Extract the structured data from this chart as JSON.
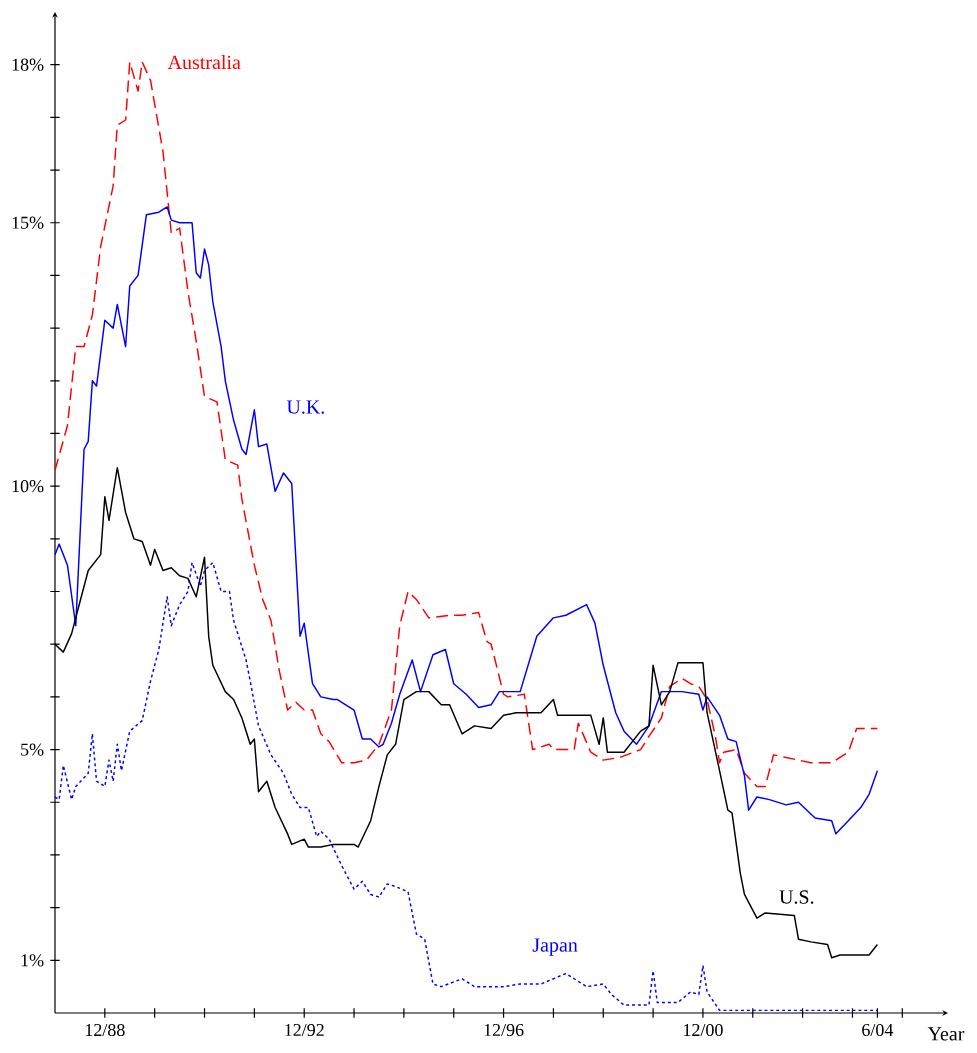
{
  "chart_data": {
    "type": "line",
    "xlabel": "Year",
    "xlim": [
      "1987-12",
      "2005-11"
    ],
    "ylim": [
      0,
      19
    ],
    "xticks": [
      {
        "value": "1988-12",
        "label": "12/88"
      },
      {
        "value": "1989-12",
        "label": null
      },
      {
        "value": "1990-12",
        "label": null
      },
      {
        "value": "1991-12",
        "label": null
      },
      {
        "value": "1992-12",
        "label": "12/92"
      },
      {
        "value": "1993-12",
        "label": null
      },
      {
        "value": "1994-12",
        "label": null
      },
      {
        "value": "1995-12",
        "label": null
      },
      {
        "value": "1996-12",
        "label": "12/96"
      },
      {
        "value": "1997-12",
        "label": null
      },
      {
        "value": "1998-12",
        "label": null
      },
      {
        "value": "1999-12",
        "label": null
      },
      {
        "value": "2000-12",
        "label": "12/00"
      },
      {
        "value": "2001-12",
        "label": null
      },
      {
        "value": "2002-12",
        "label": null
      },
      {
        "value": "2003-12",
        "label": null
      },
      {
        "value": "2004-06",
        "label": "6/04"
      },
      {
        "value": "2004-12",
        "label": null
      }
    ],
    "yticks": [
      {
        "value": 1,
        "label": "1%"
      },
      {
        "value": 2,
        "label": null
      },
      {
        "value": 3,
        "label": null
      },
      {
        "value": 4,
        "label": null
      },
      {
        "value": 5,
        "label": "5%"
      },
      {
        "value": 6,
        "label": null
      },
      {
        "value": 7,
        "label": null
      },
      {
        "value": 8,
        "label": null
      },
      {
        "value": 9,
        "label": null
      },
      {
        "value": 10,
        "label": "10%"
      },
      {
        "value": 11,
        "label": null
      },
      {
        "value": 12,
        "label": null
      },
      {
        "value": 13,
        "label": null
      },
      {
        "value": 14,
        "label": null
      },
      {
        "value": 15,
        "label": "15%"
      },
      {
        "value": 16,
        "label": null
      },
      {
        "value": 17,
        "label": null
      },
      {
        "value": 18,
        "label": "18%"
      }
    ],
    "series": [
      {
        "name": "Australia",
        "color": "#ff0000",
        "line_style": "dashed",
        "x": [
          "1987-12",
          "1988-03",
          "1988-05",
          "1988-07",
          "1988-09",
          "1988-11",
          "1989-02",
          "1989-03",
          "1989-05",
          "1989-06",
          "1989-08",
          "1989-09",
          "1989-11",
          "1990-02",
          "1990-04",
          "1990-06",
          "1990-08",
          "1990-10",
          "1990-12",
          "1991-03",
          "1991-05",
          "1991-08",
          "1991-09",
          "1991-12",
          "1992-02",
          "1992-04",
          "1992-06",
          "1992-08",
          "1992-10",
          "1992-12",
          "1993-02",
          "1993-04",
          "1993-06",
          "1993-09",
          "1993-12",
          "1994-03",
          "1994-06",
          "1994-09",
          "1994-11",
          "1995-01",
          "1995-03",
          "1995-06",
          "1995-11",
          "1996-02",
          "1996-06",
          "1996-08",
          "1996-09",
          "1996-12",
          "1997-01",
          "1997-05",
          "1997-07",
          "1997-11",
          "1997-12",
          "1998-05",
          "1998-06",
          "1998-09",
          "1998-12",
          "1999-04",
          "1999-09",
          "1999-11",
          "2000-02",
          "2000-04",
          "2000-07",
          "2000-09",
          "2000-11",
          "2001-01",
          "2001-03",
          "2001-04",
          "2001-05",
          "2001-08",
          "2001-10",
          "2002-01",
          "2002-03",
          "2002-05",
          "2002-08",
          "2002-11",
          "2003-02",
          "2003-07",
          "2003-09",
          "2003-11",
          "2004-01",
          "2004-03",
          "2004-06"
        ],
        "values": [
          10.3,
          11.15,
          12.65,
          12.65,
          13.25,
          14.55,
          15.7,
          16.85,
          16.95,
          18.05,
          17.5,
          18.05,
          17.7,
          16.35,
          14.8,
          14.9,
          13.7,
          12.75,
          11.7,
          11.6,
          10.5,
          10.4,
          9.75,
          8.5,
          7.85,
          7.45,
          6.5,
          5.75,
          5.9,
          5.75,
          5.75,
          5.3,
          5.15,
          4.75,
          4.75,
          4.8,
          5.1,
          5.75,
          7.35,
          8.0,
          7.85,
          7.5,
          7.55,
          7.55,
          7.6,
          7.05,
          7.0,
          6.05,
          6.0,
          6.05,
          5.0,
          5.1,
          5.0,
          5.0,
          5.5,
          4.95,
          4.8,
          4.85,
          5.0,
          5.25,
          5.6,
          6.2,
          6.35,
          6.25,
          6.2,
          5.95,
          5.25,
          4.75,
          4.95,
          5.0,
          4.55,
          4.3,
          4.3,
          4.9,
          4.85,
          4.8,
          4.75,
          4.75,
          4.85,
          4.95,
          5.4,
          5.4,
          5.4
        ]
      },
      {
        "name": "U.K.",
        "color": "#0000ff",
        "line_style": "solid",
        "x": [
          "1987-12",
          "1988-01",
          "1988-03",
          "1988-05",
          "1988-07",
          "1988-08",
          "1988-09",
          "1988-10",
          "1988-12",
          "1989-02",
          "1989-03",
          "1989-05",
          "1989-06",
          "1989-08",
          "1989-10",
          "1990-01",
          "1990-03",
          "1990-04",
          "1990-06",
          "1990-09",
          "1990-10",
          "1990-11",
          "1990-12",
          "1991-01",
          "1991-02",
          "1991-04",
          "1991-05",
          "1991-07",
          "1991-09",
          "1991-10",
          "1991-12",
          "1992-01",
          "1992-03",
          "1992-05",
          "1992-07",
          "1992-09",
          "1992-11",
          "1992-12",
          "1993-02",
          "1993-04",
          "1993-07",
          "1993-08",
          "1993-12",
          "1994-02",
          "1994-04",
          "1994-06",
          "1994-07",
          "1994-09",
          "1994-11",
          "1995-02",
          "1995-04",
          "1995-07",
          "1995-10",
          "1995-12",
          "1996-03",
          "1996-06",
          "1996-09",
          "1996-11",
          "1997-04",
          "1997-08",
          "1997-12",
          "1998-03",
          "1998-08",
          "1998-10",
          "1998-12",
          "1999-03",
          "1999-05",
          "1999-08",
          "1999-11",
          "2000-02",
          "2000-07",
          "2000-11",
          "2000-12",
          "2001-01",
          "2001-04",
          "2001-06",
          "2001-08",
          "2001-10",
          "2001-11",
          "2002-01",
          "2002-04",
          "2002-08",
          "2002-11",
          "2003-03",
          "2003-07",
          "2003-08",
          "2003-11",
          "2004-02",
          "2004-04",
          "2004-06"
        ],
        "values": [
          8.7,
          8.9,
          8.5,
          7.35,
          10.7,
          10.85,
          12.0,
          11.9,
          13.15,
          13.0,
          13.45,
          12.65,
          13.8,
          14.0,
          15.15,
          15.2,
          15.3,
          15.05,
          15.0,
          15.0,
          14.05,
          13.95,
          14.5,
          14.2,
          13.5,
          12.65,
          12.0,
          11.25,
          10.7,
          10.6,
          11.45,
          10.75,
          10.8,
          9.9,
          10.25,
          10.05,
          7.15,
          7.4,
          6.25,
          6.0,
          5.95,
          5.95,
          5.75,
          5.2,
          5.2,
          5.05,
          5.1,
          5.5,
          6.05,
          6.7,
          6.1,
          6.8,
          6.9,
          6.25,
          6.05,
          5.8,
          5.85,
          6.1,
          6.1,
          7.15,
          7.5,
          7.55,
          7.75,
          7.4,
          6.6,
          5.7,
          5.35,
          5.1,
          5.45,
          6.1,
          6.1,
          6.05,
          5.75,
          6.0,
          5.65,
          5.2,
          5.15,
          4.5,
          3.85,
          4.1,
          4.05,
          3.95,
          4.0,
          3.7,
          3.65,
          3.4,
          3.65,
          3.9,
          4.15,
          4.6
        ]
      },
      {
        "name": "U.S.",
        "color": "#000000",
        "line_style": "solid",
        "x": [
          "1987-12",
          "1988-02",
          "1988-04",
          "1988-06",
          "1988-08",
          "1988-11",
          "1988-12",
          "1989-01",
          "1989-03",
          "1989-05",
          "1989-07",
          "1989-09",
          "1989-11",
          "1989-12",
          "1990-02",
          "1990-04",
          "1990-06",
          "1990-08",
          "1990-10",
          "1990-12",
          "1991-01",
          "1991-02",
          "1991-05",
          "1991-07",
          "1991-09",
          "1991-11",
          "1991-12",
          "1992-01",
          "1992-03",
          "1992-05",
          "1992-08",
          "1992-09",
          "1992-12",
          "1993-01",
          "1993-04",
          "1993-07",
          "1993-12",
          "1994-01",
          "1994-04",
          "1994-06",
          "1994-08",
          "1994-10",
          "1994-12",
          "1995-03",
          "1995-06",
          "1995-09",
          "1995-11",
          "1996-02",
          "1996-05",
          "1996-09",
          "1996-12",
          "1997-03",
          "1997-09",
          "1997-12",
          "1998-01",
          "1998-09",
          "1998-11",
          "1998-12",
          "1999-01",
          "1999-05",
          "1999-09",
          "1999-11",
          "1999-12",
          "2000-02",
          "2000-04",
          "2000-06",
          "2000-09",
          "2000-12",
          "2001-01",
          "2001-04",
          "2001-06",
          "2001-07",
          "2001-09",
          "2001-10",
          "2002-01",
          "2002-03",
          "2002-10",
          "2002-11",
          "2003-02",
          "2003-06",
          "2003-07",
          "2003-09",
          "2003-12",
          "2004-04",
          "2004-06"
        ],
        "values": [
          7.0,
          6.85,
          7.2,
          7.8,
          8.4,
          8.7,
          9.8,
          9.35,
          10.35,
          9.5,
          9.0,
          8.95,
          8.5,
          8.8,
          8.4,
          8.45,
          8.3,
          8.25,
          7.9,
          8.65,
          7.15,
          6.6,
          6.1,
          5.95,
          5.6,
          5.1,
          5.2,
          4.2,
          4.4,
          3.9,
          3.4,
          3.2,
          3.3,
          3.15,
          3.15,
          3.2,
          3.2,
          3.15,
          3.65,
          4.3,
          4.9,
          5.1,
          5.95,
          6.1,
          6.1,
          5.85,
          5.85,
          5.3,
          5.45,
          5.4,
          5.65,
          5.7,
          5.7,
          5.95,
          5.65,
          5.65,
          5.1,
          5.6,
          4.95,
          4.95,
          5.35,
          5.45,
          6.6,
          5.85,
          6.1,
          6.65,
          6.65,
          6.65,
          5.7,
          4.6,
          3.85,
          3.8,
          2.65,
          2.25,
          1.8,
          1.9,
          1.85,
          1.4,
          1.35,
          1.3,
          1.05,
          1.1,
          1.1,
          1.1,
          1.3
        ]
      },
      {
        "name": "Japan",
        "color": "#0000ff",
        "line_style": "dotted",
        "x": [
          "1987-12",
          "1988-01",
          "1988-02",
          "1988-04",
          "1988-05",
          "1988-08",
          "1988-09",
          "1988-10",
          "1988-12",
          "1989-01",
          "1989-02",
          "1989-03",
          "1989-04",
          "1989-06",
          "1989-09",
          "1989-11",
          "1990-01",
          "1990-03",
          "1990-04",
          "1990-06",
          "1990-08",
          "1990-09",
          "1990-11",
          "1990-12",
          "1991-02",
          "1991-04",
          "1991-06",
          "1991-07",
          "1991-10",
          "1991-11",
          "1992-01",
          "1992-04",
          "1992-07",
          "1992-09",
          "1992-11",
          "1993-01",
          "1993-03",
          "1993-04",
          "1993-06",
          "1993-09",
          "1993-12",
          "1994-02",
          "1994-04",
          "1994-06",
          "1994-08",
          "1994-10",
          "1995-01",
          "1995-03",
          "1995-05",
          "1995-07",
          "1995-09",
          "1996-02",
          "1996-05",
          "1996-12",
          "1997-04",
          "1997-09",
          "1998-03",
          "1998-08",
          "1998-12",
          "1999-02",
          "1999-05",
          "1999-11",
          "1999-12",
          "2000-01",
          "2000-06",
          "2000-09",
          "2000-11",
          "2000-12",
          "2001-01",
          "2001-04",
          "2002-01",
          "2004-06"
        ],
        "values": [
          4.1,
          4.05,
          4.7,
          4.05,
          4.3,
          4.55,
          5.3,
          4.4,
          4.3,
          4.8,
          4.4,
          5.1,
          4.6,
          5.35,
          5.55,
          6.3,
          6.9,
          7.9,
          7.35,
          7.75,
          8.0,
          8.55,
          8.1,
          8.4,
          8.55,
          8.0,
          8.0,
          7.45,
          6.7,
          6.3,
          5.45,
          4.9,
          4.55,
          4.15,
          3.9,
          3.9,
          3.35,
          3.45,
          3.3,
          2.8,
          2.35,
          2.5,
          2.25,
          2.2,
          2.45,
          2.4,
          2.3,
          1.5,
          1.4,
          0.55,
          0.5,
          0.65,
          0.5,
          0.5,
          0.55,
          0.55,
          0.75,
          0.5,
          0.55,
          0.35,
          0.15,
          0.15,
          0.8,
          0.2,
          0.2,
          0.4,
          0.35,
          0.9,
          0.4,
          0.05,
          0.05,
          0.05
        ]
      }
    ]
  }
}
